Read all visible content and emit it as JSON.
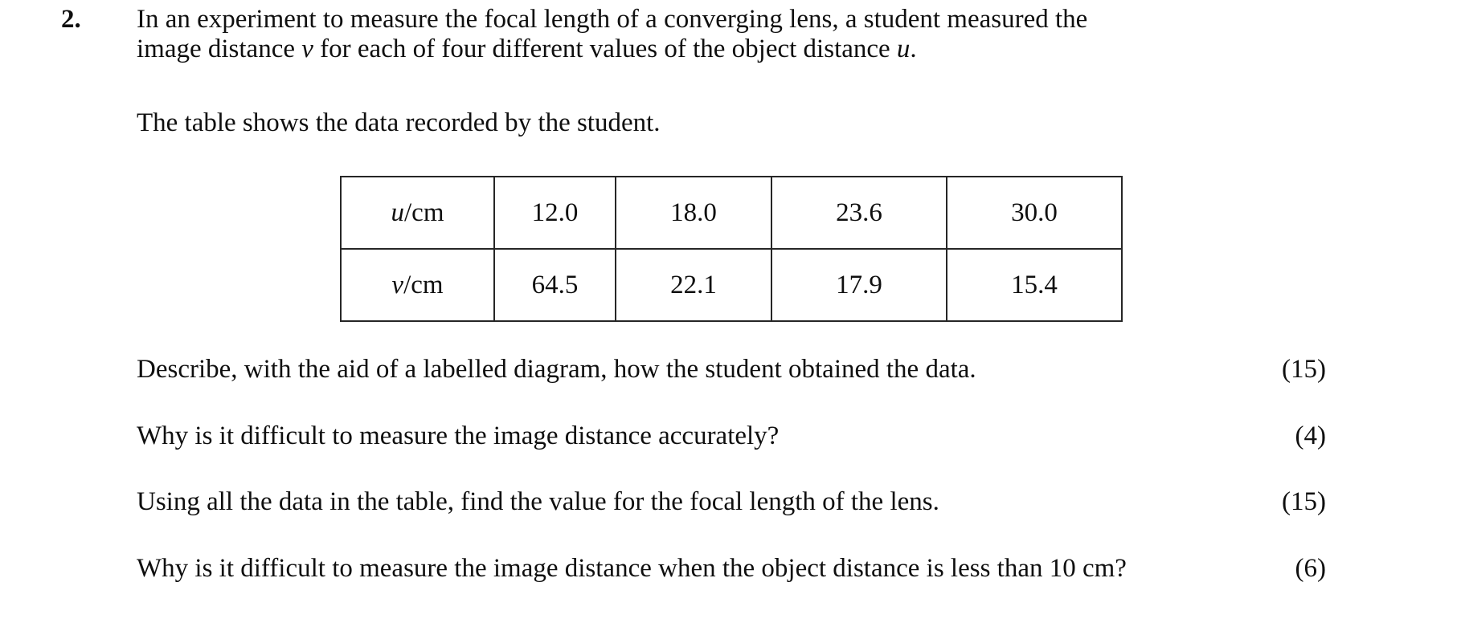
{
  "question": {
    "number": "2.",
    "intro_line1": "In an experiment to measure the focal length of a converging lens, a student measured the",
    "intro_line2": {
      "seg1": "image distance ",
      "italic1": "v",
      "seg2": " for each of four different values of the object distance ",
      "italic2": "u",
      "seg3": "."
    },
    "table_caption": "The table shows the data recorded by the student."
  },
  "data_table": {
    "row_u": {
      "label_var": "u",
      "label_unit": "/cm",
      "values": [
        "12.0",
        "18.0",
        "23.6",
        "30.0"
      ]
    },
    "row_v": {
      "label_var": "v",
      "label_unit": "/cm",
      "values": [
        "64.5",
        "22.1",
        "17.9",
        "15.4"
      ]
    }
  },
  "subquestions": [
    {
      "text": "Describe, with the aid of a labelled diagram, how the student obtained the data.",
      "marks": "(15)"
    },
    {
      "text": "Why is it difficult to measure the image distance accurately?",
      "marks": "(4)"
    },
    {
      "text": "Using all the data in the table, find the value for the focal length of the lens.",
      "marks": "(15)"
    },
    {
      "text": "Why is it difficult to measure the image distance when the object distance is less than 10 cm?",
      "marks": "(6)"
    }
  ],
  "colors": {
    "background": "#ffffff",
    "text": "#0f0f0f",
    "table_border": "#262626"
  }
}
